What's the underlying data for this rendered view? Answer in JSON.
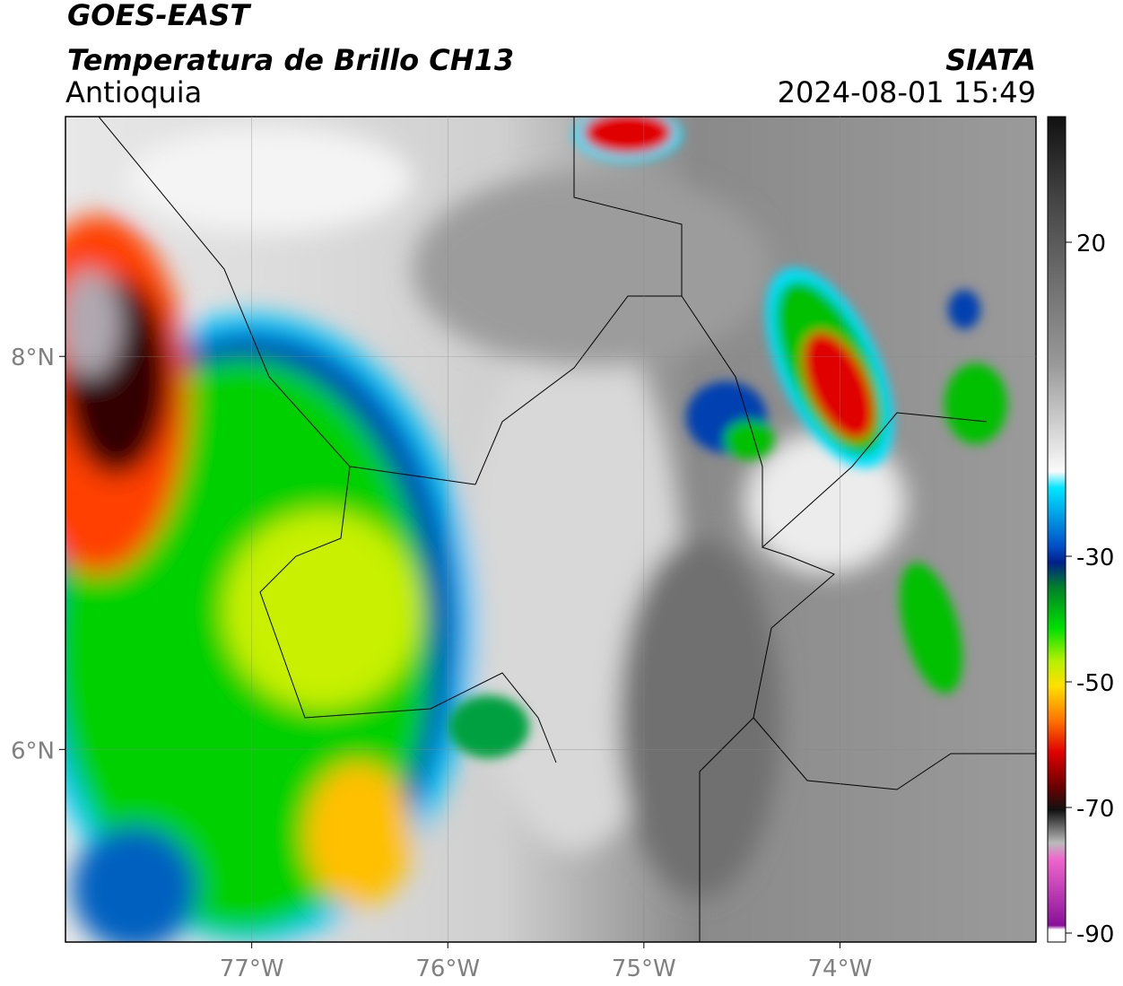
{
  "header": {
    "title": "GOES-EAST",
    "subtitle": "Temperatura de Brillo CH13",
    "region": "Antioquia",
    "source": "SIATA",
    "datetime": "2024-08-01 15:49"
  },
  "map": {
    "xlim": [
      -77.95,
      -73.0
    ],
    "ylim": [
      5.02,
      9.22
    ],
    "xticks": [
      {
        "value": -77,
        "label": "77°W"
      },
      {
        "value": -76,
        "label": "76°W"
      },
      {
        "value": -75,
        "label": "75°W"
      },
      {
        "value": -74,
        "label": "74°W"
      }
    ],
    "yticks": [
      {
        "value": 8,
        "label": "8°N"
      },
      {
        "value": 6,
        "label": "6°N"
      }
    ]
  },
  "colorbar": {
    "lim": [
      -90,
      40
    ],
    "ticks": [
      20,
      -30,
      -50,
      -70,
      -90
    ]
  }
}
